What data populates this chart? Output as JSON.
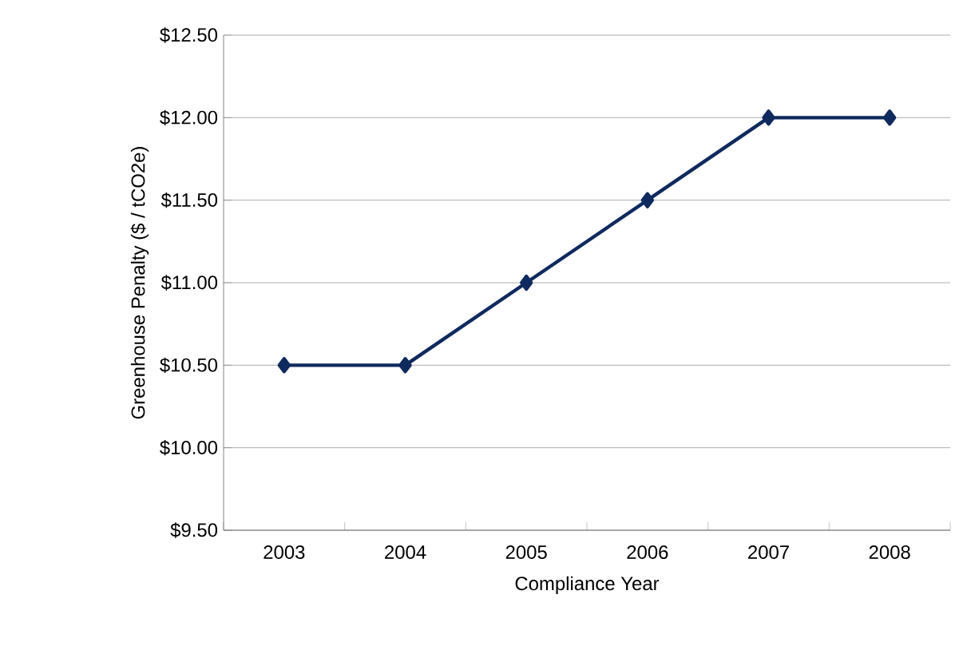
{
  "chart_data": {
    "type": "line",
    "xlabel": "Compliance Year",
    "ylabel": "Greenhouse Penalty ($ / tCO2e)",
    "categories": [
      "2003",
      "2004",
      "2005",
      "2006",
      "2007",
      "2008"
    ],
    "values": [
      10.5,
      10.5,
      11,
      11.5,
      12,
      12
    ],
    "color": "#0f2a5e",
    "marker": "diamond",
    "line_style": "solid",
    "grid": "y",
    "ylim": [
      9.5,
      12.5
    ],
    "yticks": [
      {
        "value": 9.5,
        "label": "$9.50"
      },
      {
        "value": 10,
        "label": "$10.00"
      },
      {
        "value": 10.5,
        "label": "$10.50"
      },
      {
        "value": 11,
        "label": "$11.00"
      },
      {
        "value": 11.5,
        "label": "$11.50"
      },
      {
        "value": 12,
        "label": "$12.00"
      },
      {
        "value": 12.5,
        "label": "$12.50"
      }
    ]
  }
}
